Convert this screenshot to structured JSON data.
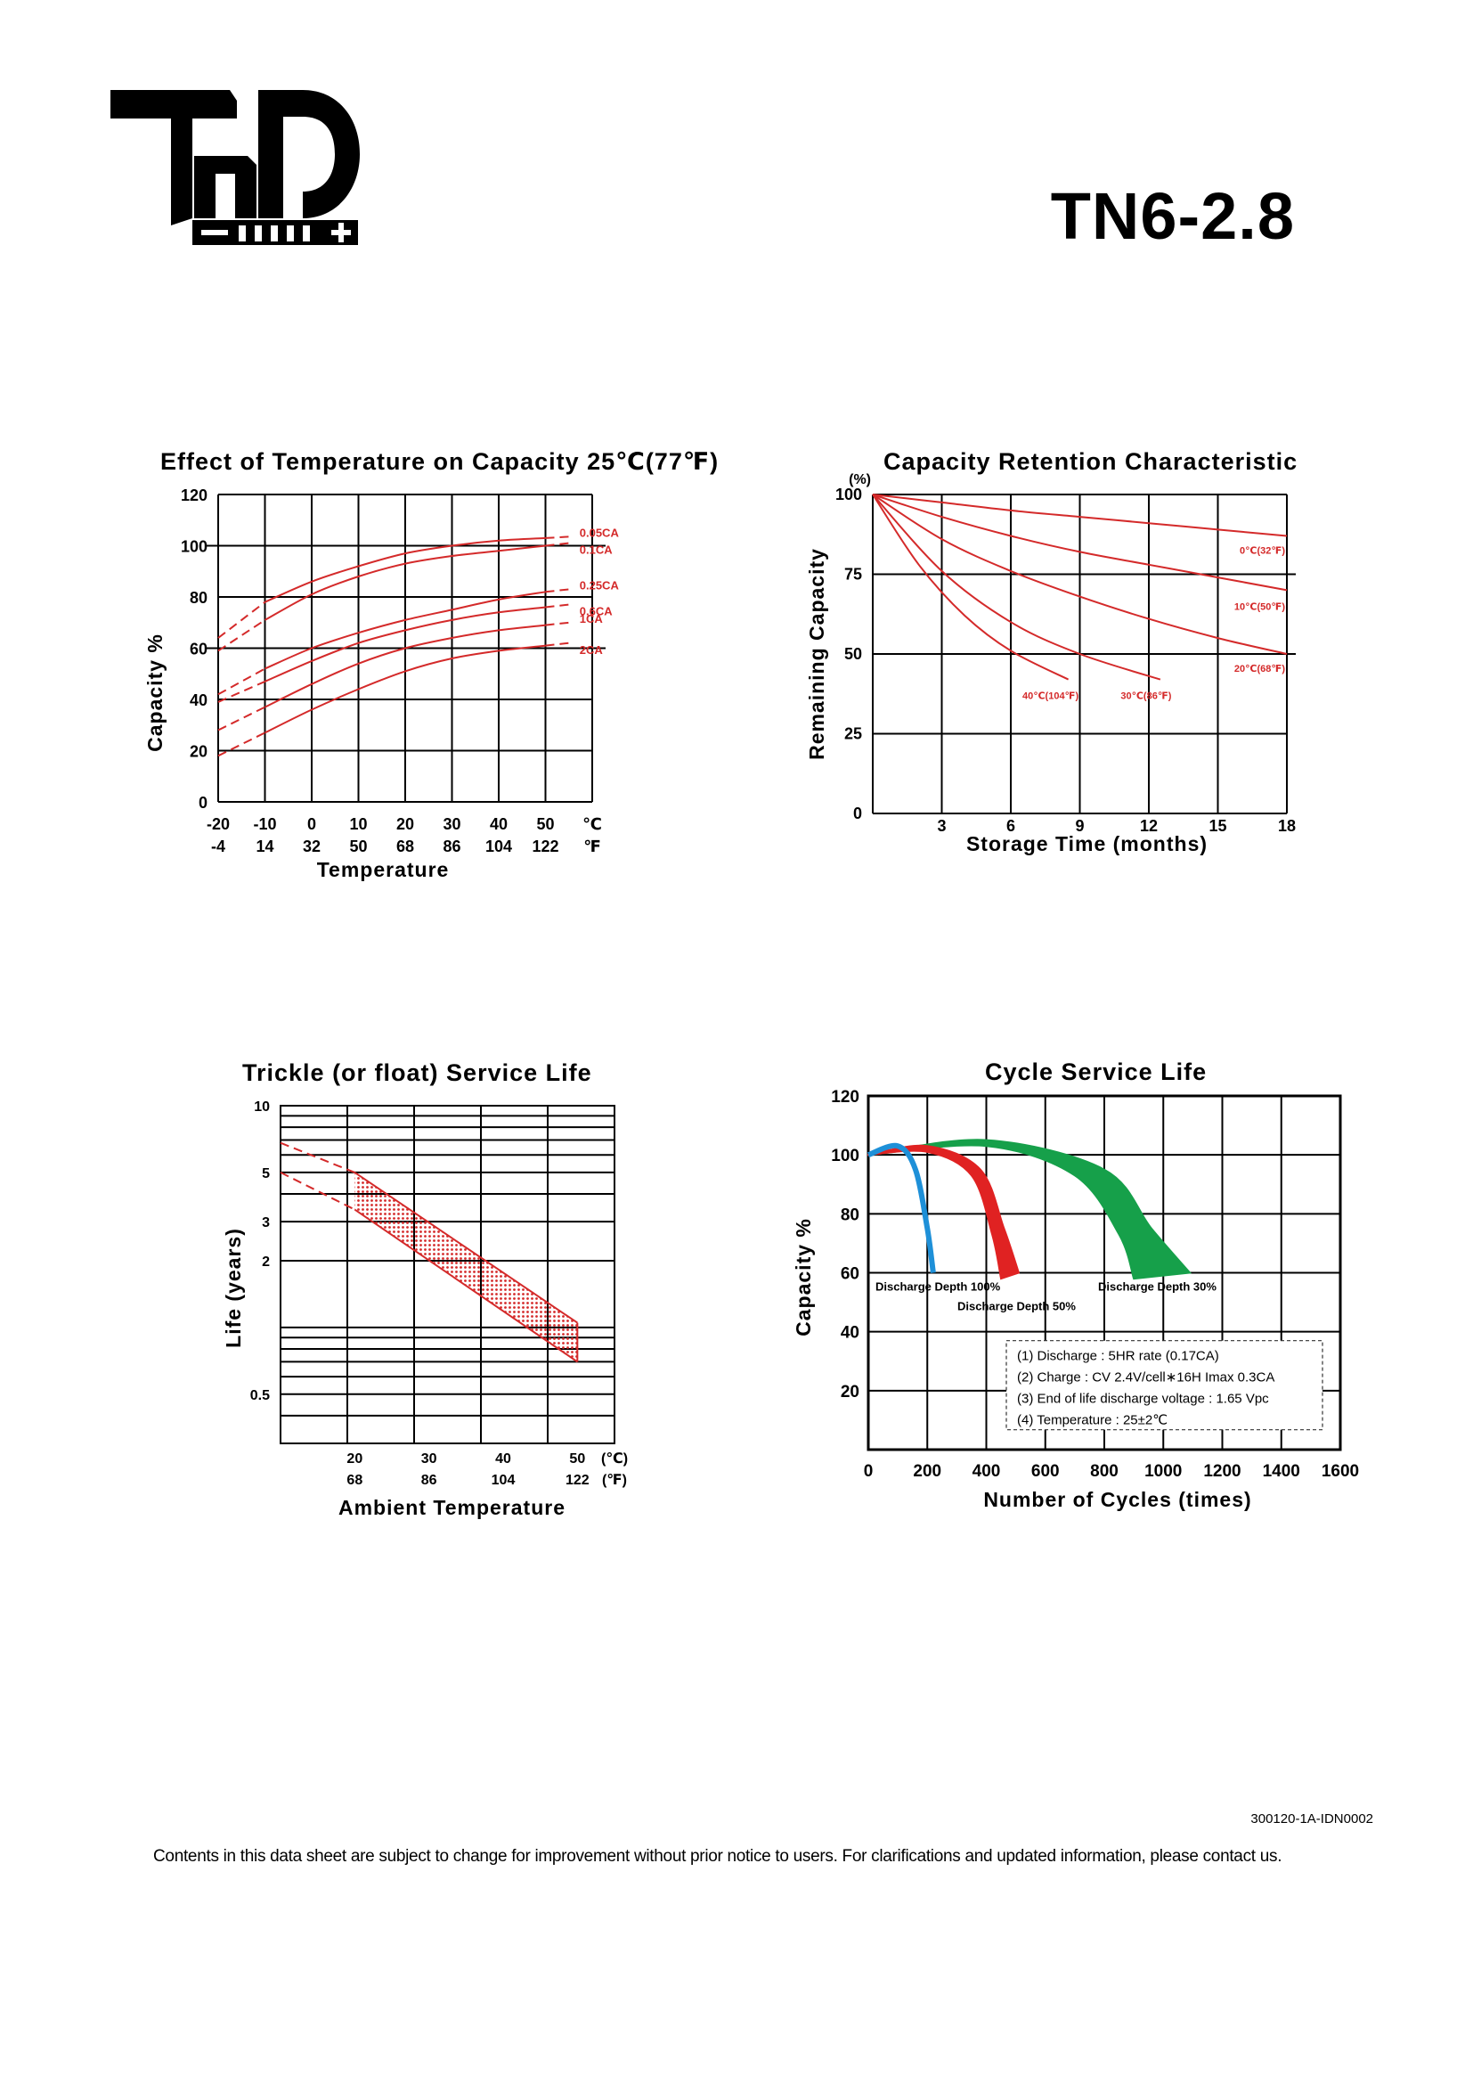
{
  "model": "TN6-2.8",
  "document_id": "300120-1A-IDN0002",
  "disclaimer": "Contents in this data sheet are subject to change for improvement without prior notice to users. For clarifications and updated information, please contact us.",
  "colors": {
    "red": "#d42a2a",
    "blue": "#1e90d8",
    "cycle_red": "#e02222",
    "green": "#16a04a"
  },
  "chart_data": [
    {
      "type": "line",
      "title": "Effect of Temperature on Capacity  25℃(77℉)",
      "xlabel": "Temperature",
      "ylabel": "Capacity %",
      "x_ticks_c": [
        "-20",
        "-10",
        "0",
        "10",
        "20",
        "30",
        "40",
        "50",
        "℃"
      ],
      "x_ticks_f": [
        "-4",
        "14",
        "32",
        "50",
        "68",
        "86",
        "104",
        "122",
        "℉"
      ],
      "y_ticks": [
        "0",
        "20",
        "40",
        "60",
        "80",
        "100",
        "120"
      ],
      "xlim": [
        -20,
        60
      ],
      "ylim": [
        0,
        120
      ],
      "series": [
        {
          "name": "0.05CA",
          "x": [
            -20,
            -10,
            0,
            10,
            20,
            30,
            40,
            50,
            55
          ],
          "y": [
            64,
            78,
            86,
            92,
            97,
            100,
            102,
            103,
            103.5
          ]
        },
        {
          "name": "0.1CA",
          "x": [
            -20,
            -10,
            0,
            10,
            20,
            30,
            40,
            50,
            55
          ],
          "y": [
            59,
            71,
            81,
            88,
            93,
            96,
            98,
            100,
            101
          ]
        },
        {
          "name": "0.25CA",
          "x": [
            -20,
            -10,
            0,
            10,
            20,
            30,
            40,
            50,
            55
          ],
          "y": [
            42,
            52,
            60,
            66,
            71,
            75,
            79,
            82,
            83
          ]
        },
        {
          "name": "0.6CA",
          "x": [
            -20,
            -10,
            0,
            10,
            20,
            30,
            40,
            50,
            55
          ],
          "y": [
            39,
            47,
            55,
            62,
            67,
            71,
            74,
            76,
            77
          ]
        },
        {
          "name": "1CA",
          "x": [
            -20,
            -10,
            0,
            10,
            20,
            30,
            40,
            50,
            55
          ],
          "y": [
            28,
            37,
            46,
            54,
            60,
            64,
            67,
            69,
            70
          ]
        },
        {
          "name": "2CA",
          "x": [
            -20,
            -10,
            0,
            10,
            20,
            30,
            40,
            50,
            55
          ],
          "y": [
            18,
            27,
            36,
            44,
            51,
            56,
            59,
            61,
            62
          ]
        }
      ],
      "dashed_below_x": -10,
      "dashed_above_x": 50
    },
    {
      "type": "line",
      "title": "Capacity Retention Characteristic",
      "xlabel": "Storage Time (months)",
      "ylabel": "Remaining Capacity",
      "y_unit": "(%)",
      "x_ticks": [
        "3",
        "6",
        "9",
        "12",
        "15",
        "18"
      ],
      "y_ticks": [
        "0",
        "25",
        "50",
        "75",
        "100"
      ],
      "xlim": [
        0,
        18
      ],
      "ylim": [
        0,
        100
      ],
      "series": [
        {
          "name": "0℃(32℉)",
          "x": [
            0,
            3,
            6,
            9,
            12,
            15,
            18
          ],
          "y": [
            100,
            97.5,
            95,
            93,
            91,
            89,
            87
          ]
        },
        {
          "name": "10℃(50℉)",
          "x": [
            0,
            3,
            6,
            9,
            12,
            15,
            18
          ],
          "y": [
            100,
            93,
            87,
            82,
            78,
            74,
            70
          ]
        },
        {
          "name": "20℃(68℉)",
          "x": [
            0,
            3,
            6,
            9,
            12,
            15,
            18
          ],
          "y": [
            100,
            86,
            76,
            68,
            61,
            55,
            50
          ]
        },
        {
          "name": "30℃(86℉)",
          "x": [
            0,
            3,
            6,
            9,
            12.5
          ],
          "y": [
            100,
            76,
            60,
            50,
            42
          ]
        },
        {
          "name": "40℃(104℉)",
          "x": [
            0,
            2,
            4,
            6,
            8.5
          ],
          "y": [
            100,
            78,
            62,
            51,
            42
          ]
        }
      ]
    },
    {
      "type": "area",
      "title": "Trickle (or float) Service Life",
      "xlabel": "Ambient Temperature",
      "ylabel": "Life (years)",
      "y_scale": "log",
      "y_ticks": [
        "10",
        "5",
        "3",
        "2",
        "0.5"
      ],
      "x_ticks_c": [
        "20",
        "30",
        "40",
        "50",
        "(℃)"
      ],
      "x_ticks_f": [
        "68",
        "86",
        "104",
        "122",
        "(℉)"
      ],
      "band": {
        "x": [
          20,
          50
        ],
        "upper": [
          5.0,
          1.05
        ],
        "lower": [
          3.4,
          0.7
        ]
      },
      "dashed_extension": {
        "x": [
          10,
          20
        ],
        "upper": [
          6.8,
          5.0
        ],
        "lower": [
          5.0,
          3.4
        ]
      }
    },
    {
      "type": "area",
      "title": "Cycle Service Life",
      "xlabel": "Number of Cycles (times)",
      "ylabel": "Capacity %",
      "x_ticks": [
        "0",
        "200",
        "400",
        "600",
        "800",
        "1000",
        "1200",
        "1400",
        "1600"
      ],
      "y_ticks": [
        "20",
        "40",
        "60",
        "80",
        "100",
        "120"
      ],
      "xlim": [
        0,
        1600
      ],
      "ylim": [
        0,
        120
      ],
      "series": [
        {
          "name": "Discharge Depth 100%",
          "x": [
            0,
            100,
            160,
            200,
            220
          ],
          "y": [
            100,
            103,
            95,
            75,
            60
          ],
          "x_inner": [
            0,
            100,
            150,
            190,
            205
          ]
        },
        {
          "name": "Discharge Depth 50%",
          "x": [
            0,
            200,
            380,
            460,
            510
          ],
          "y": [
            100,
            103,
            95,
            75,
            60
          ],
          "x_inner": [
            0,
            200,
            350,
            420,
            450
          ]
        },
        {
          "name": "Discharge Depth 30%",
          "x": [
            0,
            400,
            800,
            960,
            1090
          ],
          "y": [
            100,
            105,
            95,
            75,
            60
          ],
          "x_inner": [
            0,
            400,
            700,
            850,
            900
          ]
        }
      ],
      "notes": [
        "(1) Discharge : 5HR rate (0.17CA)",
        "(2) Charge : CV 2.4V/cell∗16H Imax 0.3CA",
        "(3) End of life discharge voltage : 1.65 Vpc",
        "(4) Temperature : 25±2℃"
      ]
    }
  ]
}
